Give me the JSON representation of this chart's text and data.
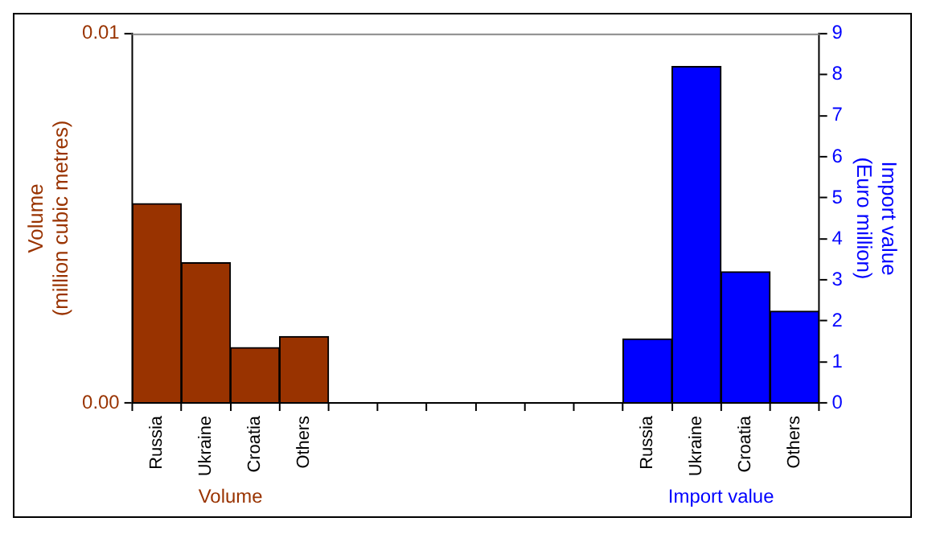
{
  "chart_data": {
    "type": "bar",
    "ylabel": "Volume\n(million cubic metres)",
    "y2label": "Import value\n(Euro million)",
    "categories": [
      "Russia",
      "Ukraine",
      "Croatia",
      "Others",
      null,
      null,
      null,
      null,
      null,
      null,
      "Russia",
      "Ukraine",
      "Croatia",
      "Others"
    ],
    "series": [
      {
        "name": "Volume",
        "color": "#993300",
        "values": [
          0.0054,
          0.0038,
          0.0015,
          0.0018,
          null,
          null,
          null,
          null,
          null,
          null,
          null,
          null,
          null,
          null
        ]
      },
      {
        "name": "Import value",
        "color": "#0000ff",
        "axis": "y2",
        "values": [
          null,
          null,
          null,
          null,
          null,
          null,
          null,
          null,
          null,
          null,
          1.56,
          8.2,
          3.2,
          2.24
        ]
      }
    ],
    "ylim": [
      0,
      0.01
    ],
    "yticks": [
      {
        "value": 0,
        "label": "0.00"
      },
      0.01
    ],
    "y2lim": [
      0,
      9
    ],
    "y2ticks": [
      0,
      1,
      2,
      3,
      4,
      5,
      6,
      7,
      8,
      9
    ],
    "legend": false
  }
}
